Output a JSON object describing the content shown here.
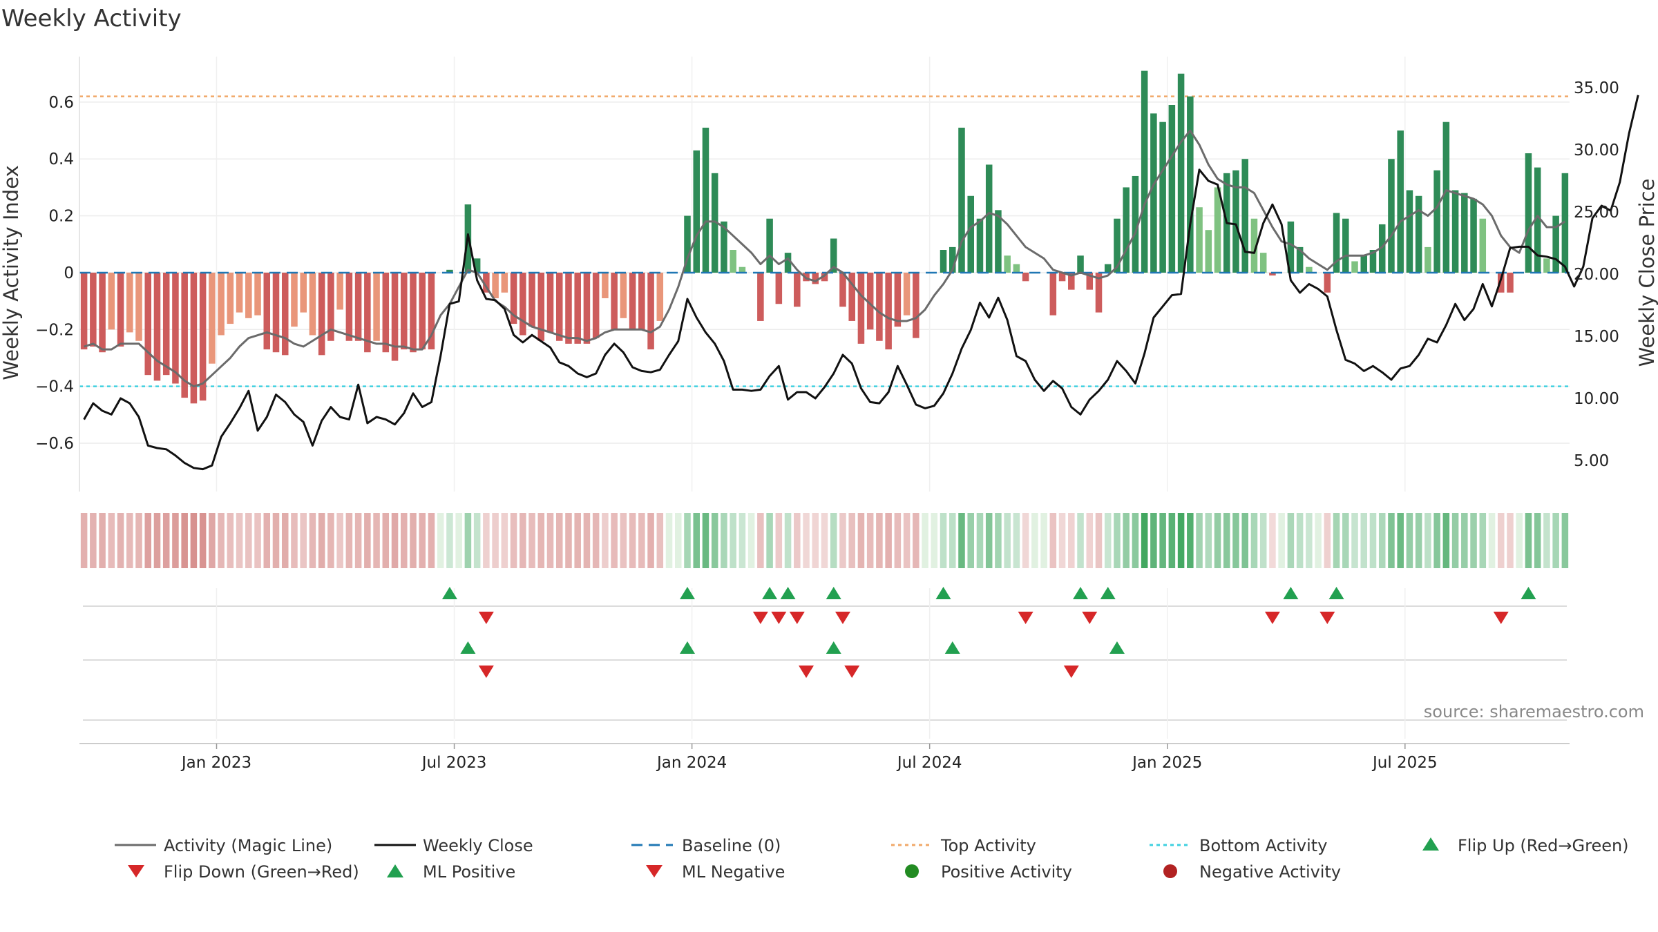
{
  "chart_data": {
    "type": "bar",
    "title": "Weekly Activity",
    "ylabel": "Weekly Activity Index",
    "y2label": "Weekly Close Price",
    "source": "source: sharemaestro.com",
    "ylim": [
      -0.77,
      0.76
    ],
    "y2lim": [
      2.5,
      37.5
    ],
    "yticks": [
      {
        "v": 0.6,
        "t": "0.6"
      },
      {
        "v": 0.4,
        "t": "0.4"
      },
      {
        "v": 0.2,
        "t": "0.2"
      },
      {
        "v": 0,
        "t": "0"
      },
      {
        "v": -0.2,
        "t": "−0.2"
      },
      {
        "v": -0.4,
        "t": "−0.4"
      },
      {
        "v": -0.6,
        "t": "−0.6"
      }
    ],
    "y2ticks": [
      {
        "v": 35,
        "t": "35.00"
      },
      {
        "v": 30,
        "t": "30.00"
      },
      {
        "v": 25,
        "t": "25.00"
      },
      {
        "v": 20,
        "t": "20.00"
      },
      {
        "v": 15,
        "t": "15.00"
      },
      {
        "v": 10,
        "t": "10.00"
      },
      {
        "v": 5,
        "t": "5.00"
      }
    ],
    "xticks": [
      {
        "week": 14.5,
        "label": "Jan 2023"
      },
      {
        "week": 40.5,
        "label": "Jul 2023"
      },
      {
        "week": 66.5,
        "label": "Jan 2024"
      },
      {
        "week": 92.5,
        "label": "Jul 2024"
      },
      {
        "week": 118.5,
        "label": "Jan 2025"
      },
      {
        "week": 144.5,
        "label": "Jul 2025"
      }
    ],
    "top_activity": 0.62,
    "bottom_activity": -0.4,
    "activity": [
      -0.27,
      -0.26,
      -0.28,
      -0.2,
      -0.26,
      -0.21,
      -0.24,
      -0.36,
      -0.38,
      -0.36,
      -0.39,
      -0.44,
      -0.46,
      -0.45,
      -0.32,
      -0.22,
      -0.18,
      -0.14,
      -0.16,
      -0.15,
      -0.27,
      -0.28,
      -0.29,
      -0.19,
      -0.14,
      -0.22,
      -0.29,
      -0.24,
      -0.13,
      -0.24,
      -0.24,
      -0.28,
      -0.24,
      -0.28,
      -0.31,
      -0.27,
      -0.28,
      -0.27,
      -0.27,
      0.0,
      0.01,
      0.0,
      0.24,
      0.05,
      -0.07,
      -0.09,
      -0.07,
      -0.18,
      -0.22,
      -0.19,
      -0.24,
      -0.21,
      -0.24,
      -0.25,
      -0.25,
      -0.25,
      -0.23,
      -0.09,
      -0.2,
      -0.16,
      -0.2,
      -0.2,
      -0.27,
      -0.17,
      0.0,
      0.0,
      0.2,
      0.43,
      0.51,
      0.35,
      0.18,
      0.08,
      0.02,
      0.0,
      -0.17,
      0.19,
      -0.11,
      0.07,
      -0.12,
      -0.03,
      -0.04,
      -0.03,
      0.12,
      -0.12,
      -0.17,
      -0.25,
      -0.2,
      -0.24,
      -0.27,
      -0.19,
      -0.15,
      -0.23,
      0.0,
      0.0,
      0.08,
      0.09,
      0.51,
      0.27,
      0.19,
      0.38,
      0.22,
      0.06,
      0.03,
      -0.03,
      0.0,
      0.0,
      -0.15,
      -0.03,
      -0.06,
      0.06,
      -0.06,
      -0.14,
      0.03,
      0.19,
      0.3,
      0.34,
      0.71,
      0.56,
      0.53,
      0.59,
      0.7,
      0.62,
      0.23,
      0.15,
      0.3,
      0.35,
      0.36,
      0.4,
      0.19,
      0.07,
      -0.01,
      0.0,
      0.18,
      0.09,
      0.02,
      0.0,
      -0.07,
      0.21,
      0.19,
      0.04,
      0.06,
      0.08,
      0.17,
      0.4,
      0.5,
      0.29,
      0.27,
      0.09,
      0.36,
      0.53,
      0.29,
      0.28,
      0.26,
      0.19,
      0.0,
      -0.07,
      -0.07,
      0.0,
      0.42,
      0.37,
      0.05,
      0.2,
      0.35
    ],
    "magic_line": [
      -0.26,
      -0.25,
      -0.27,
      -0.27,
      -0.25,
      -0.25,
      -0.25,
      -0.28,
      -0.31,
      -0.33,
      -0.35,
      -0.38,
      -0.4,
      -0.39,
      -0.36,
      -0.33,
      -0.3,
      -0.26,
      -0.23,
      -0.22,
      -0.21,
      -0.22,
      -0.23,
      -0.25,
      -0.26,
      -0.24,
      -0.22,
      -0.2,
      -0.21,
      -0.22,
      -0.23,
      -0.24,
      -0.25,
      -0.25,
      -0.26,
      -0.26,
      -0.27,
      -0.27,
      -0.22,
      -0.15,
      -0.11,
      -0.05,
      0.01,
      0.0,
      -0.05,
      -0.1,
      -0.12,
      -0.15,
      -0.17,
      -0.19,
      -0.2,
      -0.21,
      -0.22,
      -0.23,
      -0.23,
      -0.24,
      -0.23,
      -0.21,
      -0.2,
      -0.2,
      -0.2,
      -0.2,
      -0.21,
      -0.19,
      -0.13,
      -0.05,
      0.05,
      0.13,
      0.18,
      0.18,
      0.16,
      0.13,
      0.1,
      0.07,
      0.03,
      0.06,
      0.03,
      0.05,
      0.01,
      -0.02,
      -0.03,
      -0.01,
      0.02,
      0.0,
      -0.04,
      -0.08,
      -0.11,
      -0.14,
      -0.16,
      -0.17,
      -0.17,
      -0.16,
      -0.13,
      -0.08,
      -0.04,
      0.01,
      0.11,
      0.16,
      0.18,
      0.21,
      0.2,
      0.17,
      0.13,
      0.09,
      0.07,
      0.05,
      0.01,
      0.0,
      -0.01,
      0.0,
      -0.01,
      -0.02,
      -0.01,
      0.02,
      0.08,
      0.14,
      0.24,
      0.31,
      0.36,
      0.41,
      0.46,
      0.5,
      0.45,
      0.38,
      0.33,
      0.31,
      0.3,
      0.3,
      0.28,
      0.22,
      0.16,
      0.11,
      0.1,
      0.08,
      0.05,
      0.03,
      0.01,
      0.04,
      0.06,
      0.06,
      0.06,
      0.07,
      0.09,
      0.13,
      0.18,
      0.2,
      0.22,
      0.2,
      0.23,
      0.29,
      0.28,
      0.27,
      0.26,
      0.24,
      0.2,
      0.13,
      0.09,
      0.07,
      0.15,
      0.2,
      0.16,
      0.16,
      0.18
    ],
    "weekly_close": [
      8.3,
      9.6,
      9,
      8.7,
      10,
      9.6,
      8.5,
      6.2,
      6,
      5.9,
      5.4,
      4.8,
      4.4,
      4.3,
      4.6,
      6.9,
      8,
      9.2,
      10.6,
      7.4,
      8.5,
      10.3,
      9.7,
      8.7,
      8.1,
      6.2,
      8.2,
      9.3,
      8.5,
      8.3,
      11.1,
      8,
      8.5,
      8.3,
      7.9,
      8.8,
      10.4,
      9.3,
      9.7,
      13.4,
      17.6,
      17.8,
      23.2,
      19.5,
      18,
      17.9,
      17.2,
      15.1,
      14.5,
      15.1,
      14.6,
      14.1,
      12.9,
      12.6,
      12,
      11.7,
      12,
      13.5,
      14.4,
      13.7,
      12.5,
      12.2,
      12.1,
      12.3,
      13.5,
      14.6,
      18,
      16.5,
      15.3,
      14.4,
      13,
      10.7,
      10.7,
      10.6,
      10.7,
      11.8,
      12.6,
      9.9,
      10.5,
      10.5,
      10,
      10.9,
      12,
      13.5,
      12.8,
      10.8,
      9.7,
      9.6,
      10.5,
      12.6,
      11.1,
      9.5,
      9.2,
      9.4,
      10.4,
      12,
      14,
      15.5,
      17.7,
      16.5,
      18.1,
      16.3,
      13.4,
      13,
      11.5,
      10.6,
      11.4,
      10.8,
      9.3,
      8.7,
      9.9,
      10.6,
      11.5,
      13,
      12.2,
      11.2,
      13.6,
      16.5,
      17.4,
      18.3,
      18.4,
      24,
      28.4,
      27.5,
      27.2,
      24.1,
      24,
      21.8,
      21.7,
      24.1,
      25.6,
      24,
      19.5,
      18.5,
      19.2,
      18.8,
      18.2,
      15.5,
      13.1,
      12.8,
      12.2,
      12.6,
      12.1,
      11.5,
      12.4,
      12.6,
      13.5,
      14.8,
      14.5,
      15.9,
      17.6,
      16.3,
      17.2,
      19.2,
      17.4,
      19.6,
      22.1,
      22.2,
      22.2,
      21.5,
      21.4,
      21.2,
      20.6,
      19,
      20.6,
      24.5,
      25.5,
      25.1,
      27.4,
      31.3,
      34.4
    ]
  },
  "legend": {
    "magic_line": "Activity (Magic Line)",
    "weekly_close": "Weekly Close",
    "baseline": "Baseline (0)",
    "top_activity": "Top Activity",
    "bottom_activity": "Bottom Activity",
    "flip_up": "Flip Up (Red→Green)",
    "flip_down": "Flip Down (Green→Red)",
    "ml_positive": "ML Positive",
    "ml_negative": "ML Negative",
    "positive_activity": "Positive Activity",
    "negative_activity": "Negative Activity"
  },
  "colors": {
    "strong_green": "#2e8b57",
    "light_green": "#7fc281",
    "strong_red": "#cd5c5c",
    "light_red": "#e9967a",
    "magic_line": "#6b6b6b",
    "close_line": "#111111",
    "baseline": "#1f77b4",
    "top_line": "#f0a868",
    "bottom_line": "#3fd0e0",
    "up_marker": "#22a050",
    "down_marker": "#d62728",
    "positive_dot": "#228b22",
    "negative_dot": "#b22222"
  }
}
